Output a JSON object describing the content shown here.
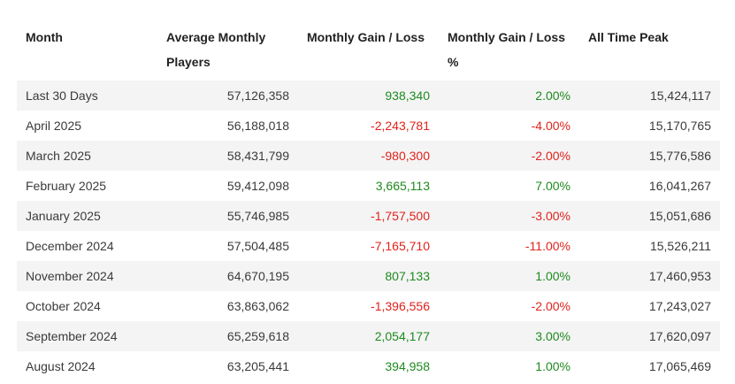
{
  "table": {
    "headers": [
      "Month",
      "Average Monthly Players",
      "Monthly Gain / Loss",
      "Monthly Gain / Loss %",
      "All Time Peak"
    ],
    "rows": [
      {
        "month": "Last 30 Days",
        "avg": "57,126,358",
        "gain": "938,340",
        "gain_pct": "2.00%",
        "peak": "15,424,117",
        "trend": "pos"
      },
      {
        "month": "April 2025",
        "avg": "56,188,018",
        "gain": "-2,243,781",
        "gain_pct": "-4.00%",
        "peak": "15,170,765",
        "trend": "neg"
      },
      {
        "month": "March 2025",
        "avg": "58,431,799",
        "gain": "-980,300",
        "gain_pct": "-2.00%",
        "peak": "15,776,586",
        "trend": "neg"
      },
      {
        "month": "February 2025",
        "avg": "59,412,098",
        "gain": "3,665,113",
        "gain_pct": "7.00%",
        "peak": "16,041,267",
        "trend": "pos"
      },
      {
        "month": "January 2025",
        "avg": "55,746,985",
        "gain": "-1,757,500",
        "gain_pct": "-3.00%",
        "peak": "15,051,686",
        "trend": "neg"
      },
      {
        "month": "December 2024",
        "avg": "57,504,485",
        "gain": "-7,165,710",
        "gain_pct": "-11.00%",
        "peak": "15,526,211",
        "trend": "neg"
      },
      {
        "month": "November 2024",
        "avg": "64,670,195",
        "gain": "807,133",
        "gain_pct": "1.00%",
        "peak": "17,460,953",
        "trend": "pos"
      },
      {
        "month": "October 2024",
        "avg": "63,863,062",
        "gain": "-1,396,556",
        "gain_pct": "-2.00%",
        "peak": "17,243,027",
        "trend": "neg"
      },
      {
        "month": "September 2024",
        "avg": "65,259,618",
        "gain": "2,054,177",
        "gain_pct": "3.00%",
        "peak": "17,620,097",
        "trend": "pos"
      },
      {
        "month": "August 2024",
        "avg": "63,205,441",
        "gain": "394,958",
        "gain_pct": "1.00%",
        "peak": "17,065,469",
        "trend": "pos"
      }
    ]
  },
  "colors": {
    "positive": "#1e8a1e",
    "negative": "#e0221b",
    "stripe": "#f4f4f4"
  }
}
